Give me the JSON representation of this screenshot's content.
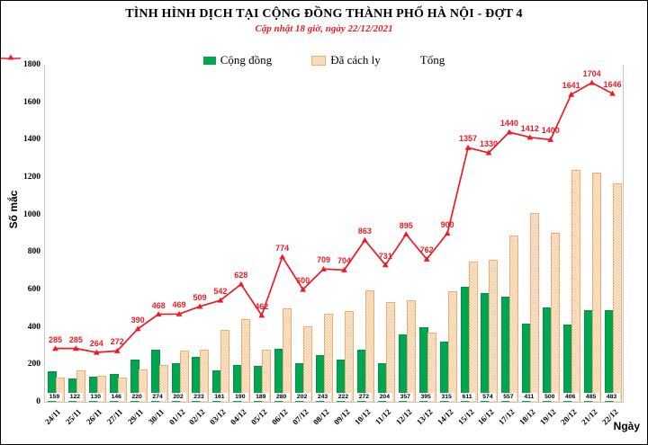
{
  "header": {
    "title": "TÌNH HÌNH DỊCH TẠI CỘNG ĐỒNG THÀNH PHỐ HÀ NỘI - ĐỢT 4",
    "subtitle": "Cập nhật 18 giờ, ngày 22/12/2021"
  },
  "legend": {
    "community_label": "Cộng đồng",
    "quarantine_label": "Đã cách ly",
    "total_label": "Tổng"
  },
  "axes": {
    "y_label": "Số mắc",
    "x_label": "Ngày",
    "y_ticks": [
      0,
      200,
      400,
      600,
      800,
      1000,
      1200,
      1400,
      1600,
      1800
    ]
  },
  "colors": {
    "community": "#00a550",
    "quarantine_fill": "#fdf0e2",
    "quarantine_pattern": "#f6c795",
    "quarantine_border": "#f0ad72",
    "total_line": "#ed1c24"
  },
  "chart_data": {
    "type": "bar",
    "title": "TÌNH HÌNH DỊCH TẠI CỘNG ĐỒNG THÀNH PHỐ HÀ NỘI - ĐỢT 4",
    "subtitle": "Cập nhật 18 giờ, ngày 22/12/2021",
    "xlabel": "Ngày",
    "ylabel": "Số mắc",
    "ylim": [
      0,
      1800
    ],
    "grid": false,
    "legend_position": "top-center",
    "categories": [
      "24/11",
      "25/11",
      "26/11",
      "27/11",
      "29/11",
      "30/11",
      "01/12",
      "02/12",
      "03/12",
      "04/12",
      "05/12",
      "06/12",
      "07/12",
      "08/12",
      "09/12",
      "10/12",
      "11/12",
      "12/12",
      "13/12",
      "14/12",
      "15/12",
      "16/12",
      "17/12",
      "18/12",
      "19/12",
      "20/12",
      "21/12",
      "22/12"
    ],
    "series": [
      {
        "name": "Cộng đồng",
        "type": "bar",
        "color": "#00a550",
        "values": [
          159,
          122,
          130,
          146,
          220,
          274,
          202,
          233,
          161,
          190,
          189,
          280,
          202,
          243,
          222,
          272,
          204,
          357,
          395,
          315,
          611,
          574,
          557,
          411,
          500,
          406,
          485,
          483
        ],
        "labels_shown": true
      },
      {
        "name": "Đã cách ly",
        "type": "bar",
        "color": "#f6c795",
        "values": [
          126,
          163,
          134,
          126,
          170,
          194,
          267,
          276,
          381,
          438,
          273,
          494,
          398,
          466,
          482,
          591,
          527,
          538,
          367,
          585,
          746,
          756,
          883,
          1001,
          900,
          1235,
          1219,
          1163
        ],
        "labels_shown": false
      },
      {
        "name": "Tổng",
        "type": "line",
        "color": "#ed1c24",
        "marker": "triangle",
        "values": [
          285,
          285,
          264,
          272,
          390,
          468,
          469,
          509,
          542,
          628,
          462,
          774,
          600,
          709,
          704,
          863,
          731,
          895,
          762,
          900,
          1357,
          1330,
          1440,
          1412,
          1400,
          1641,
          1704,
          1646
        ],
        "labels_shown": true
      }
    ]
  }
}
